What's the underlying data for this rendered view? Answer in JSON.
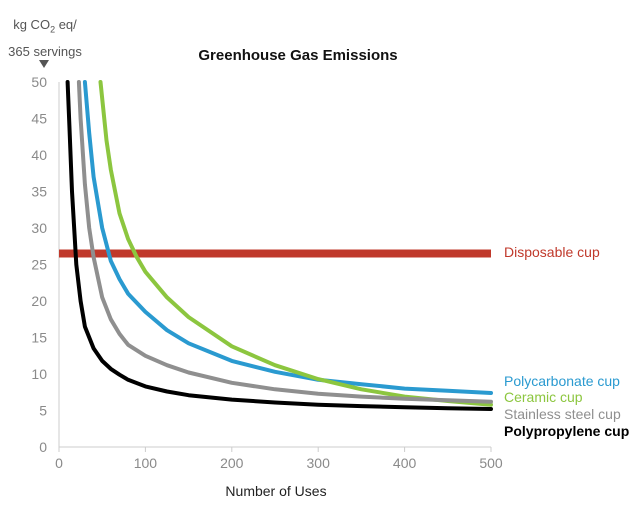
{
  "chart_data": {
    "type": "line",
    "title": "Greenhouse Gas Emissions",
    "xlabel": "Number of Uses",
    "ylabel": {
      "prefix": "kg CO",
      "sub": "2",
      "suffix": " eq/",
      "line2": "365 servings"
    },
    "xlim": [
      0,
      500
    ],
    "ylim": [
      0,
      50
    ],
    "xticks": [
      0,
      100,
      200,
      300,
      400,
      500
    ],
    "yticks": [
      0,
      5,
      10,
      15,
      20,
      25,
      30,
      35,
      40,
      45,
      50
    ],
    "grid": "none",
    "legend": "right, inline labels",
    "series": [
      {
        "name": "Disposable cup",
        "color": "#c0392b",
        "style": "thick-flat",
        "x": [
          0,
          500
        ],
        "y": [
          26.5,
          26.5
        ]
      },
      {
        "name": "Polycarbonate cup",
        "color": "#2a9ad0",
        "x": [
          30,
          35,
          40,
          50,
          60,
          70,
          80,
          100,
          125,
          150,
          200,
          250,
          300,
          350,
          400,
          450,
          500
        ],
        "y": [
          50,
          43,
          37,
          30,
          25.5,
          23,
          21,
          18.5,
          16,
          14.2,
          11.8,
          10.3,
          9.2,
          8.6,
          8,
          7.7,
          7.4
        ]
      },
      {
        "name": "Ceramic cup",
        "color": "#8cc63f",
        "x": [
          48,
          55,
          60,
          70,
          80,
          90,
          100,
          125,
          150,
          200,
          250,
          300,
          350,
          400,
          450,
          500
        ],
        "y": [
          50,
          42,
          38,
          32,
          28.5,
          26,
          24,
          20.5,
          17.8,
          13.8,
          11.2,
          9.3,
          7.9,
          6.9,
          6.3,
          5.8
        ]
      },
      {
        "name": "Stainless steel cup",
        "color": "#8f8f8f",
        "x": [
          23,
          25,
          30,
          35,
          40,
          50,
          60,
          70,
          80,
          100,
          125,
          150,
          200,
          250,
          300,
          350,
          400,
          450,
          500
        ],
        "y": [
          50,
          45,
          36,
          30,
          26,
          20.5,
          17.5,
          15.5,
          14,
          12.5,
          11.2,
          10.2,
          8.8,
          7.9,
          7.3,
          6.9,
          6.6,
          6.4,
          6.2
        ]
      },
      {
        "name": "Polypropylene cup",
        "color": "#000000",
        "x": [
          10,
          12,
          15,
          18,
          20,
          25,
          30,
          40,
          50,
          60,
          70,
          80,
          100,
          125,
          150,
          200,
          250,
          300,
          350,
          400,
          450,
          500
        ],
        "y": [
          50,
          44,
          35,
          29,
          25,
          20,
          16.5,
          13.5,
          11.8,
          10.7,
          9.9,
          9.2,
          8.3,
          7.6,
          7.1,
          6.5,
          6.1,
          5.8,
          5.6,
          5.45,
          5.3,
          5.2
        ]
      }
    ],
    "labels": [
      {
        "text": "Disposable cup",
        "color": "#c0392b",
        "weight": "normal"
      },
      {
        "text": "Polycarbonate cup",
        "color": "#2a9ad0",
        "weight": "normal"
      },
      {
        "text": "Ceramic cup",
        "color": "#8cc63f",
        "weight": "normal"
      },
      {
        "text": "Stainless steel cup",
        "color": "#8f8f8f",
        "weight": "normal"
      },
      {
        "text": "Polypropylene cup",
        "color": "#000000",
        "weight": "bold"
      }
    ]
  }
}
